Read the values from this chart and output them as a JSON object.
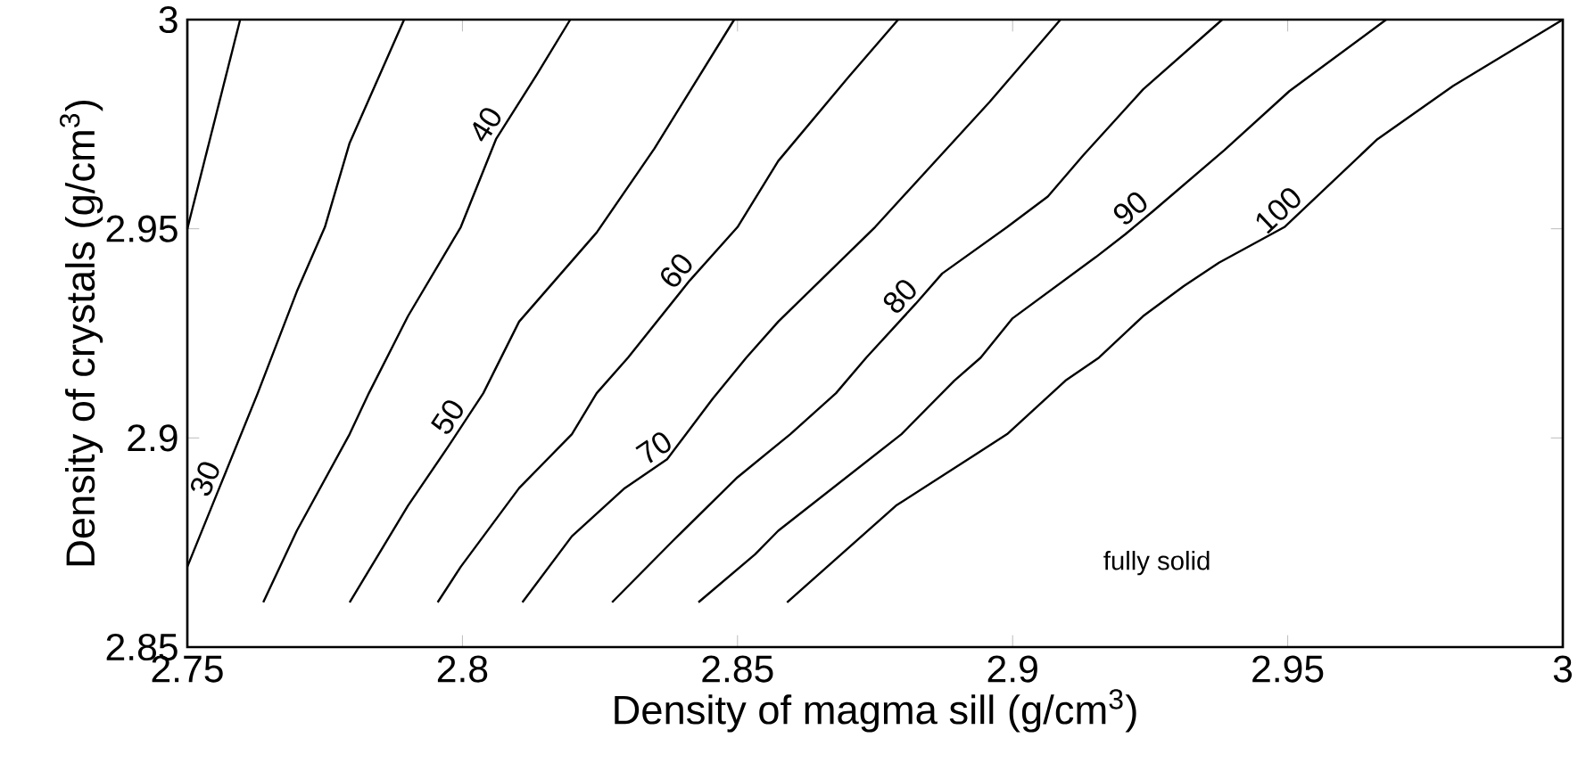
{
  "chart_data": {
    "type": "line",
    "xlabel": "Density of magma sill (g/cm$^{3}$)",
    "ylabel": "Density of crystals (g/cm$^{3}$)",
    "xlim": [
      2.75,
      3
    ],
    "ylim": [
      2.85,
      3
    ],
    "xticks": [
      2.75,
      2.8,
      2.85,
      2.9,
      2.95,
      3
    ],
    "yticks": [
      2.85,
      2.9,
      2.95,
      3
    ],
    "annotations": [
      "fully solid"
    ],
    "series": [
      {
        "color": "#000000",
        "x": [
          2.7596,
          2.75
        ],
        "values": [
          3.0,
          2.95
        ]
      },
      {
        "name": "30",
        "color": "#000000",
        "x": [
          2.7894,
          2.7795,
          2.775,
          2.7699,
          2.7628,
          2.7558,
          2.75
        ],
        "values": [
          3.0,
          2.9705,
          2.9504,
          2.935,
          2.9107,
          2.888,
          2.8692
        ]
      },
      {
        "name": "40",
        "color": "#000000",
        "x": [
          2.8196,
          2.8135,
          2.8061,
          2.7997,
          2.7901,
          2.783,
          2.7795,
          2.7699,
          2.7638
        ],
        "values": [
          3.0,
          2.9868,
          2.9714,
          2.9504,
          2.9291,
          2.9107,
          2.9009,
          2.8778,
          2.8607
        ]
      },
      {
        "name": "50",
        "color": "#000000",
        "x": [
          2.8494,
          2.8349,
          2.8244,
          2.8103,
          2.8038,
          2.7974,
          2.7901,
          2.7795
        ],
        "values": [
          3.0,
          2.9692,
          2.9491,
          2.9278,
          2.9107,
          2.8979,
          2.8838,
          2.8607
        ]
      },
      {
        "name": "60",
        "color": "#000000",
        "x": [
          2.8792,
          2.8702,
          2.8574,
          2.85,
          2.8413,
          2.8301,
          2.8244,
          2.8199,
          2.8103,
          2.7997,
          2.7955
        ],
        "values": [
          3.0,
          2.9863,
          2.9662,
          2.9504,
          2.9376,
          2.9192,
          2.9107,
          2.9009,
          2.888,
          2.8692,
          2.8607
        ]
      },
      {
        "name": "70",
        "color": "#000000",
        "x": [
          2.9087,
          2.8958,
          2.875,
          2.8574,
          2.8516,
          2.8455,
          2.8372,
          2.8295,
          2.8199,
          2.8109
        ],
        "values": [
          3.0,
          2.9803,
          2.9504,
          2.9278,
          2.9192,
          2.9094,
          2.8949,
          2.888,
          2.8765,
          2.8607
        ]
      },
      {
        "name": "80",
        "color": "#000000",
        "x": [
          2.9381,
          2.9237,
          2.9128,
          2.9064,
          2.899,
          2.8872,
          2.8824,
          2.8734,
          2.8679,
          2.8596,
          2.85,
          2.8381,
          2.8272
        ],
        "values": [
          3.0,
          2.9833,
          2.9675,
          2.9577,
          2.9504,
          2.9393,
          2.9321,
          2.9192,
          2.9107,
          2.9009,
          2.8906,
          2.8752,
          2.8607
        ]
      },
      {
        "name": "90",
        "color": "#000000",
        "x": [
          2.9679,
          2.9503,
          2.9385,
          2.9256,
          2.9205,
          2.9151,
          2.9,
          2.8942,
          2.8894,
          2.8798,
          2.8574,
          2.8532,
          2.8429
        ],
        "values": [
          3.0,
          2.9829,
          2.9688,
          2.9543,
          2.9487,
          2.9432,
          2.9286,
          2.9192,
          2.9137,
          2.9009,
          2.8778,
          2.8722,
          2.8607
        ]
      },
      {
        "name": "100",
        "color": "#000000",
        "x": [
          3.0,
          2.9801,
          2.9663,
          2.9494,
          2.9375,
          2.9311,
          2.9237,
          2.9157,
          2.9096,
          2.899,
          2.8788,
          2.859
        ],
        "values": [
          3.0,
          2.9842,
          2.9714,
          2.9504,
          2.9419,
          2.9363,
          2.9291,
          2.9192,
          2.9137,
          2.9009,
          2.8838,
          2.8607
        ]
      }
    ]
  }
}
